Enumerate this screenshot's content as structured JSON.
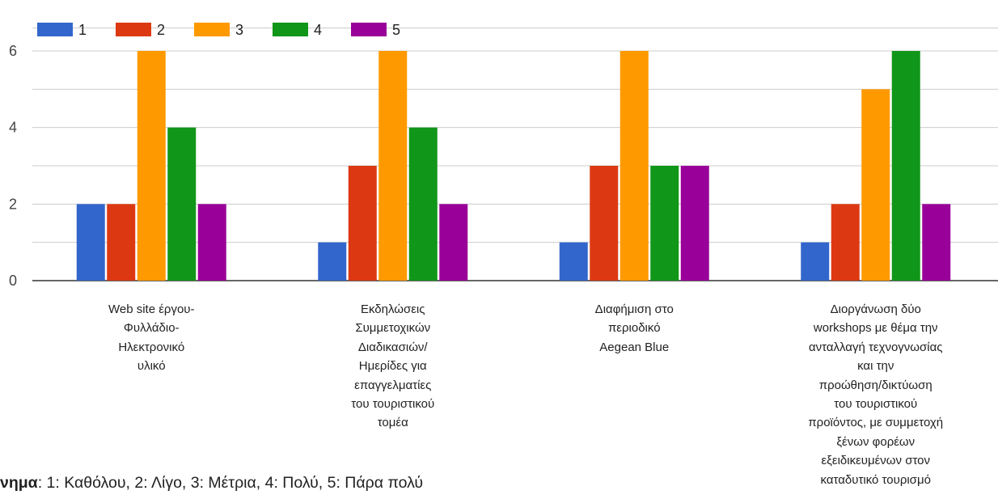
{
  "chart_data": {
    "type": "bar",
    "categories": [
      "Web site έργου-\nΦυλλάδιο-\nΗλεκτρονικό\nυλικό",
      "Εκδηλώσεις\nΣυμμετοχικών\nΔιαδικασιών/\nΗμερίδες για\nεπαγγελματίες\nτου τουριστικού\nτομέα",
      "Διαφήμιση στο\nπεριοδικό\nAegean Blue",
      "Διοργάνωση δύο\nworkshops με θέμα την\nανταλλαγή τεχνογνωσίας\nκαι την\nπροώθηση/δικτύωση\nτου τουριστικού\nπροϊόντος, με συμμετοχή\nξένων φορέων\nεξειδικευμένων στον\nκαταδυτικό τουρισμό"
    ],
    "series": [
      {
        "name": "1",
        "color": "#3366cc",
        "values": [
          2,
          1,
          1,
          1
        ]
      },
      {
        "name": "2",
        "color": "#dc3912",
        "values": [
          2,
          3,
          3,
          2
        ]
      },
      {
        "name": "3",
        "color": "#ff9900",
        "values": [
          6,
          6,
          6,
          5
        ]
      },
      {
        "name": "4",
        "color": "#109618",
        "values": [
          4,
          4,
          3,
          6
        ]
      },
      {
        "name": "5",
        "color": "#990099",
        "values": [
          2,
          2,
          3,
          2
        ]
      }
    ],
    "yticks": [
      "0",
      "2",
      "4",
      "6"
    ],
    "ylim": [
      0,
      6.6
    ],
    "grid": true,
    "legend_position": "top-left"
  },
  "note": {
    "bold": "νημα",
    "rest": ": 1: Καθόλου, 2: Λίγο, 3: Μέτρια, 4: Πολύ, 5: Πάρα πολύ"
  }
}
